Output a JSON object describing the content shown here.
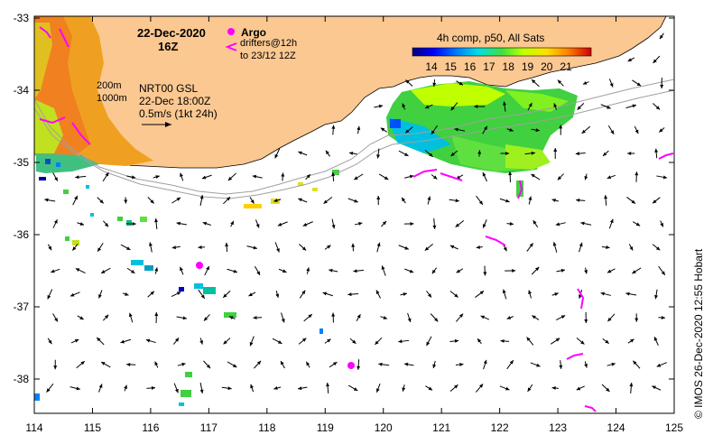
{
  "map": {
    "date_line1": "22-Dec-2020",
    "date_line2": "16Z",
    "argo_label": "Argo",
    "drifter_label_1": "drifters@12h",
    "drifter_label_2": "to 23/12 12Z",
    "isobath_200": "200m",
    "isobath_1000": "1000m",
    "product_line1": "NRT00 GSL",
    "product_line2": "22-Dec 18:00Z",
    "scale_label": "0.5m/s (1kt 24h)",
    "credit": "© IMOS 26-Dec-2020 12:55 Hobart",
    "colorbar": {
      "title": "4h comp, p50, All Sats",
      "ticks": [
        "14",
        "15",
        "16",
        "17",
        "18",
        "19",
        "20",
        "21"
      ]
    },
    "x_ticks": [
      "114",
      "115",
      "116",
      "117",
      "118",
      "119",
      "120",
      "121",
      "122",
      "123",
      "124",
      "125"
    ],
    "y_ticks": [
      "-33",
      "-34",
      "-35",
      "-36",
      "-37",
      "-38"
    ],
    "colors": {
      "land": "#fbc892",
      "argo": "#ff00ff",
      "drifter": "#ff00ff",
      "isobath": "#a0a0a0"
    }
  }
}
